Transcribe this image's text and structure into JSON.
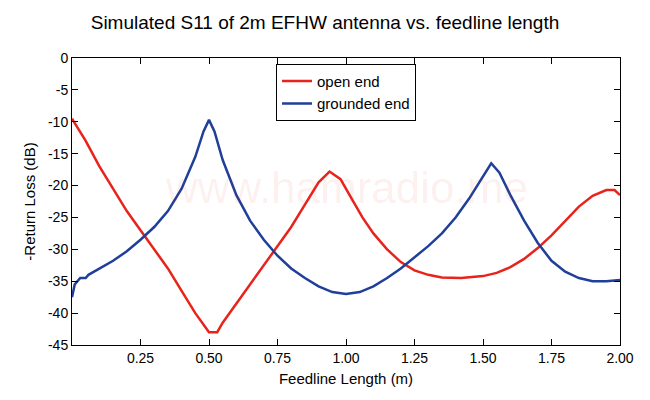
{
  "chart_data": {
    "type": "line",
    "title": "Simulated S11 of 2m EFHW antenna vs. feedline length",
    "x_label": "Feedline Length (m)",
    "y_label": "-Return Loss (dB)",
    "annotations": [
      "www.hamradio.me"
    ],
    "xlim": [
      0,
      2
    ],
    "ylim": [
      -45,
      0
    ],
    "xticks": [
      0.25,
      {
        "value": 0.5,
        "label": "0.50"
      },
      0.75,
      {
        "value": 1,
        "label": "1.00"
      },
      1.25,
      {
        "value": 1.5,
        "label": "1.50"
      },
      1.75,
      {
        "value": 2,
        "label": "2.00"
      }
    ],
    "yticks": [
      0,
      -5,
      -10,
      -15,
      -20,
      -25,
      -30,
      -35,
      -40,
      -45
    ],
    "grid": false,
    "legend": "top",
    "series": [
      {
        "name": "open end",
        "color": "#e8231b",
        "x": [
          0,
          0.05,
          0.1,
          0.15,
          0.2,
          0.25,
          0.3,
          0.35,
          0.4,
          0.45,
          0.5,
          0.53,
          0.55,
          0.6,
          0.65,
          0.7,
          0.75,
          0.8,
          0.85,
          0.9,
          0.94,
          0.98,
          1.02,
          1.06,
          1.1,
          1.15,
          1.2,
          1.25,
          1.3,
          1.35,
          1.42,
          1.5,
          1.55,
          1.6,
          1.65,
          1.7,
          1.75,
          1.8,
          1.85,
          1.9,
          1.95,
          1.98,
          2.0
        ],
        "values": [
          -9.5,
          -13,
          -17,
          -20.5,
          -24,
          -27,
          -30,
          -33,
          -36.5,
          -40,
          -43,
          -43,
          -41.5,
          -38.5,
          -35.5,
          -32.5,
          -29.5,
          -26.5,
          -23,
          -19.5,
          -17.8,
          -19,
          -22,
          -25,
          -27.5,
          -30,
          -32,
          -33.3,
          -34,
          -34.4,
          -34.5,
          -34.2,
          -33.7,
          -32.8,
          -31.5,
          -29.8,
          -27.8,
          -25.5,
          -23.3,
          -21.6,
          -20.7,
          -20.7,
          -21.5
        ]
      },
      {
        "name": "grounded end",
        "color": "#1f3f99",
        "x": [
          0,
          0.01,
          0.03,
          0.05,
          0.06,
          0.1,
          0.15,
          0.2,
          0.25,
          0.3,
          0.35,
          0.4,
          0.45,
          0.48,
          0.5,
          0.52,
          0.55,
          0.6,
          0.65,
          0.7,
          0.75,
          0.8,
          0.85,
          0.9,
          0.95,
          1.0,
          1.05,
          1.1,
          1.15,
          1.2,
          1.25,
          1.3,
          1.35,
          1.4,
          1.45,
          1.5,
          1.53,
          1.56,
          1.6,
          1.65,
          1.7,
          1.75,
          1.8,
          1.85,
          1.9,
          1.95,
          2.0
        ],
        "values": [
          -37.5,
          -35.5,
          -34.5,
          -34.5,
          -34,
          -33,
          -31.8,
          -30.3,
          -28.5,
          -26.5,
          -24,
          -20.5,
          -15.5,
          -11.5,
          -9.7,
          -11.5,
          -16,
          -21.5,
          -25.5,
          -28.5,
          -31,
          -33,
          -34.5,
          -35.8,
          -36.7,
          -37,
          -36.7,
          -35.8,
          -34.5,
          -33,
          -31.3,
          -29.5,
          -27.5,
          -25,
          -22,
          -18.5,
          -16.5,
          -18,
          -21.5,
          -25.5,
          -29,
          -31.8,
          -33.5,
          -34.5,
          -35,
          -35,
          -34.8
        ]
      }
    ]
  }
}
